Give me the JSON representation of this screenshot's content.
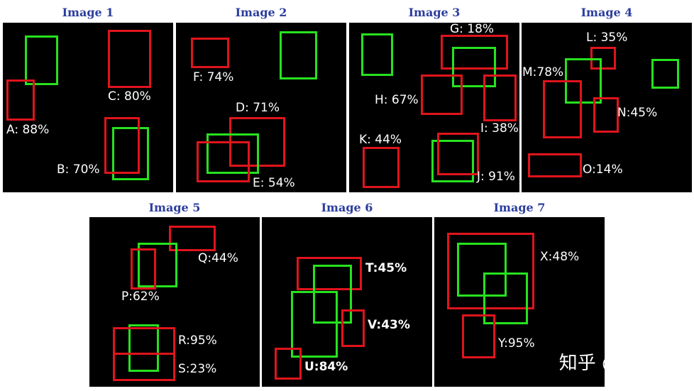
{
  "colors": {
    "predicted_box": "#e0141c",
    "ground_truth_box": "#27e21f",
    "title": "#2c3e9e",
    "panel_background": "#000000"
  },
  "panels": [
    {
      "title": "Image 1",
      "labels": [
        "A: 88%",
        "B: 70%",
        "C: 80%"
      ]
    },
    {
      "title": "Image 2",
      "labels": [
        "D: 71%",
        "E: 54%",
        "F: 74%"
      ]
    },
    {
      "title": "Image 3",
      "labels": [
        "G: 18%",
        "H: 67%",
        "I: 38%",
        "J: 91%",
        "K: 44%"
      ]
    },
    {
      "title": "Image 4",
      "labels": [
        "L: 35%",
        "M:78%",
        "N:45%",
        "O:14%"
      ]
    },
    {
      "title": "Image 5",
      "labels": [
        "P:62%",
        "Q:44%",
        "R:95%",
        "S:23%"
      ]
    },
    {
      "title": "Image 6",
      "labels": [
        "T:45%",
        "U:84%",
        "V:43%"
      ]
    },
    {
      "title": "Image 7",
      "labels": [
        "X:48%",
        "Y:95%"
      ]
    }
  ],
  "watermark": "知乎 @李兰青"
}
